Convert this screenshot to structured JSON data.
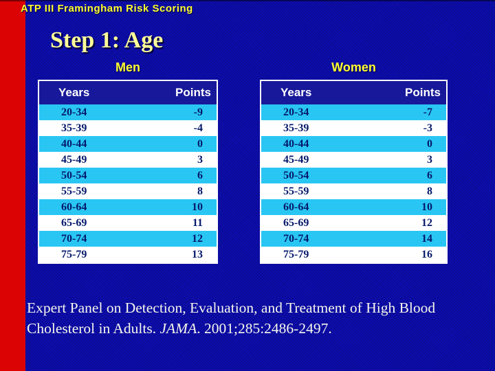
{
  "slide": {
    "header": "ATP III Framingham Risk Scoring",
    "title": "Step 1: Age"
  },
  "tables": [
    {
      "label": "Men",
      "columns": [
        "Years",
        "Points"
      ],
      "rows": [
        [
          "20-34",
          "-9"
        ],
        [
          "35-39",
          "-4"
        ],
        [
          "40-44",
          "0"
        ],
        [
          "45-49",
          "3"
        ],
        [
          "50-54",
          "6"
        ],
        [
          "55-59",
          "8"
        ],
        [
          "60-64",
          "10"
        ],
        [
          "65-69",
          "11"
        ],
        [
          "70-74",
          "12"
        ],
        [
          "75-79",
          "13"
        ]
      ]
    },
    {
      "label": "Women",
      "columns": [
        "Years",
        "Points"
      ],
      "rows": [
        [
          "20-34",
          "-7"
        ],
        [
          "35-39",
          "-3"
        ],
        [
          "40-44",
          "0"
        ],
        [
          "45-49",
          "3"
        ],
        [
          "50-54",
          "6"
        ],
        [
          "55-59",
          "8"
        ],
        [
          "60-64",
          "10"
        ],
        [
          "65-69",
          "12"
        ],
        [
          "70-74",
          "14"
        ],
        [
          "75-79",
          "16"
        ]
      ]
    }
  ],
  "citation": {
    "line1": "Expert Panel on Detection, Evaluation, and Treatment of High Blood",
    "line2_before": "Cholesterol in Adults. ",
    "journal": "JAMA",
    "line2_after": ". 2001;285:2486-2497."
  },
  "colors": {
    "bg": "#0e0eb6",
    "red": "#db0303",
    "yellow": "#ffff33",
    "paleYellow": "#ffff99",
    "headerNavy": "#18189a",
    "cyan": "#29c6f3",
    "textNavy": "#05196b"
  }
}
